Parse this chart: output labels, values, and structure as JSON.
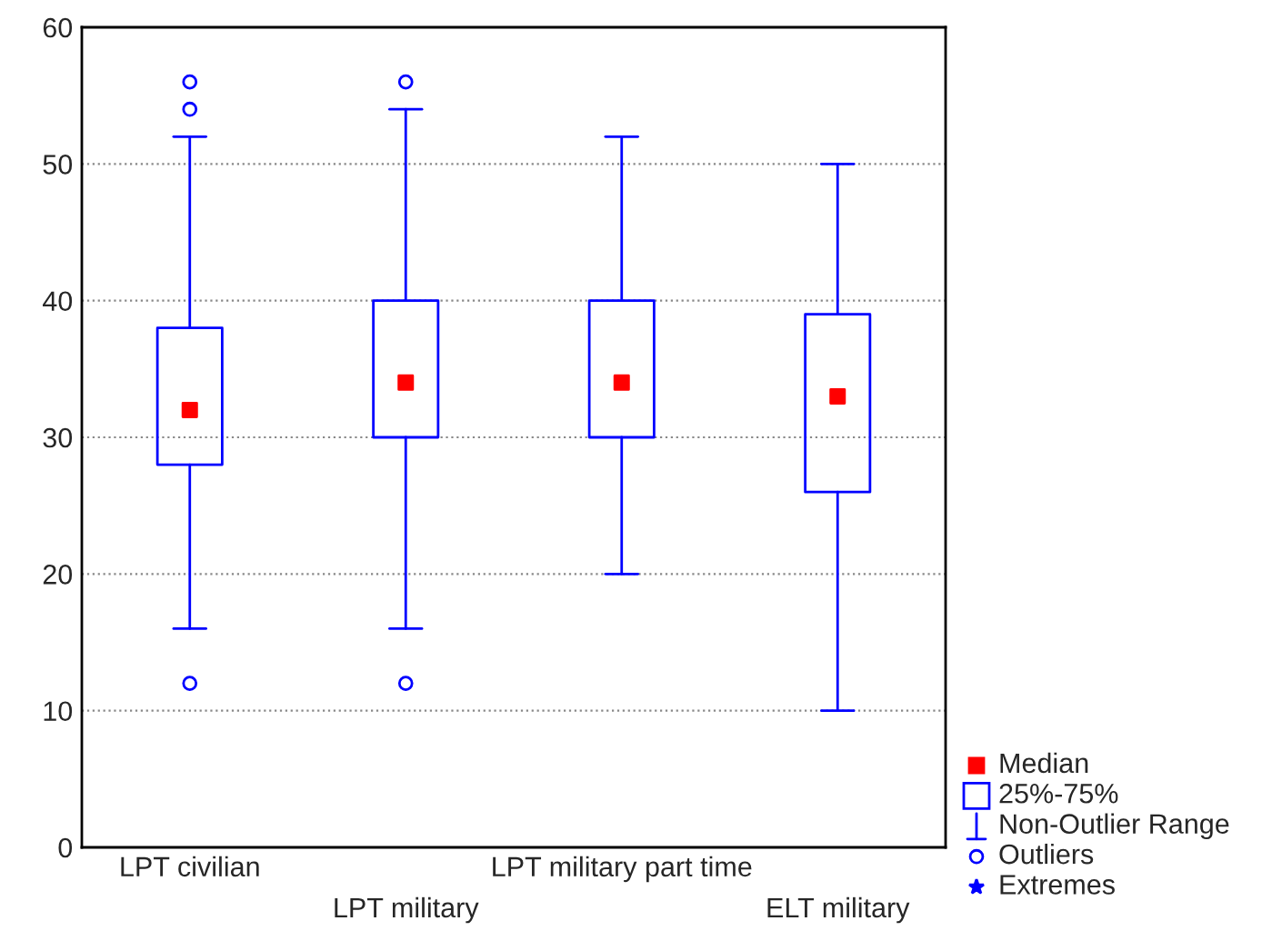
{
  "chart_data": {
    "type": "box",
    "categories": [
      "LPT civilian",
      "LPT military",
      "LPT military part time",
      "ELT military"
    ],
    "series": [
      {
        "color": "#0000ff",
        "boxes": [
          {
            "low": 16,
            "q1": 28,
            "median": 32,
            "q3": 38,
            "high": 52,
            "outliers": [
              56,
              54,
              12
            ]
          },
          {
            "low": 16,
            "q1": 30,
            "median": 34,
            "q3": 40,
            "high": 54,
            "outliers": [
              56,
              12
            ]
          },
          {
            "low": 20,
            "q1": 30,
            "median": 34,
            "q3": 40,
            "high": 52
          },
          {
            "low": 10,
            "q1": 26,
            "median": 33,
            "q3": 39,
            "high": 50
          }
        ]
      }
    ],
    "ylim": [
      0,
      60
    ],
    "yticks": [
      0,
      10,
      20,
      30,
      40,
      50,
      60
    ],
    "grid": "y",
    "annotations": [
      "Median",
      "25%-75%",
      "Non-Outlier Range",
      "Outliers",
      "Extremes"
    ]
  }
}
